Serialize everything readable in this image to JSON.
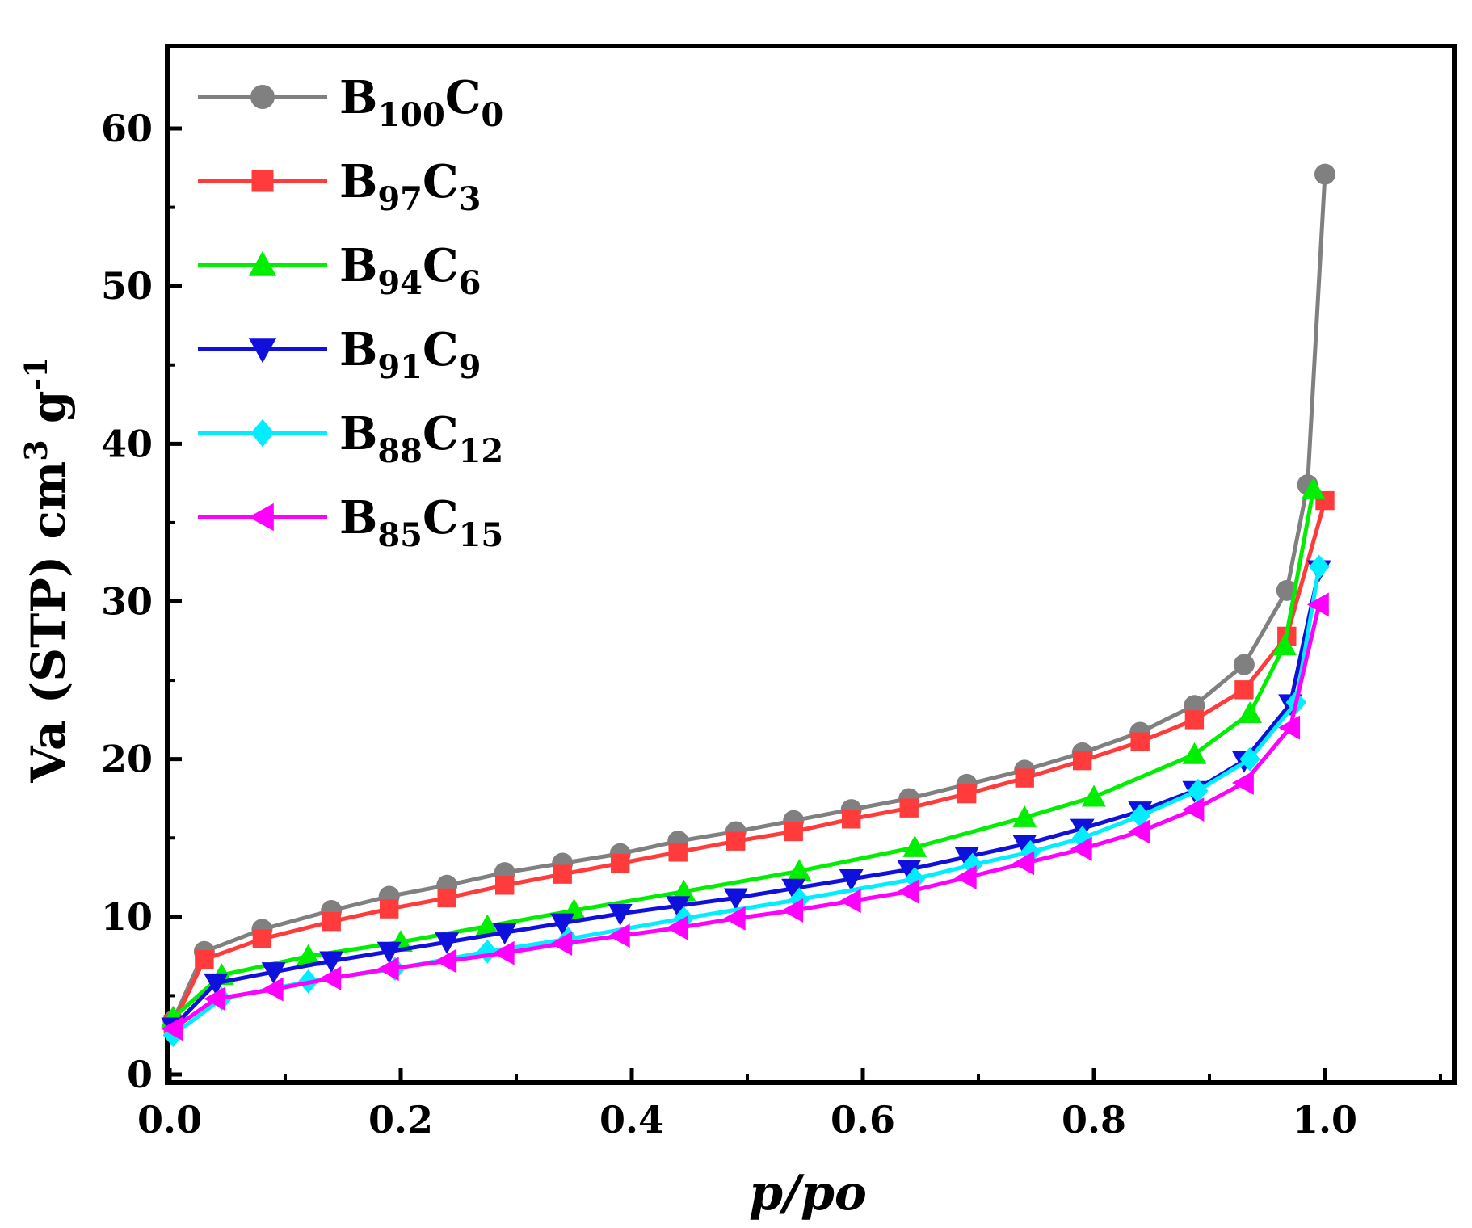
{
  "chart_data": {
    "type": "line",
    "title": "",
    "xlabel": "p/po",
    "ylabel_parts": {
      "main": "Va (STP) cm",
      "unit_sup_1": "3",
      "unit_mid": " g",
      "unit_sup_2": "-1"
    },
    "xlim": [
      0.0,
      1.1
    ],
    "ylim": [
      0,
      65
    ],
    "x_ticks": [
      0.0,
      0.2,
      0.4,
      0.6,
      0.8,
      1.0
    ],
    "x_tick_labels": [
      "0.0",
      "0.2",
      "0.4",
      "0.6",
      "0.8",
      "1.0"
    ],
    "y_ticks": [
      0,
      10,
      20,
      30,
      40,
      50,
      60
    ],
    "y_tick_labels": [
      "0",
      "10",
      "20",
      "30",
      "40",
      "50",
      "60"
    ],
    "grid": false,
    "legend_position": "top-left",
    "series": [
      {
        "name": "B100C0",
        "label_b": "B",
        "label_b_sub": "100",
        "label_c": "C",
        "label_c_sub": "0",
        "color": "#808080",
        "marker": "circle",
        "x": [
          0.003,
          0.03,
          0.08,
          0.14,
          0.19,
          0.24,
          0.29,
          0.34,
          0.39,
          0.44,
          0.49,
          0.54,
          0.59,
          0.64,
          0.69,
          0.74,
          0.79,
          0.84,
          0.887,
          0.93,
          0.967,
          0.985,
          1.0
        ],
        "y": [
          3.4,
          7.8,
          9.2,
          10.4,
          11.3,
          12.0,
          12.8,
          13.4,
          14.0,
          14.8,
          15.4,
          16.1,
          16.8,
          17.5,
          18.4,
          19.3,
          20.4,
          21.7,
          23.4,
          26.0,
          30.7,
          37.4,
          57.1
        ]
      },
      {
        "name": "B97C3",
        "label_b": "B",
        "label_b_sub": "97",
        "label_c": "C",
        "label_c_sub": "3",
        "color": "#ff3b3b",
        "marker": "square",
        "x": [
          0.003,
          0.03,
          0.08,
          0.14,
          0.19,
          0.24,
          0.29,
          0.34,
          0.39,
          0.44,
          0.49,
          0.54,
          0.59,
          0.64,
          0.69,
          0.74,
          0.79,
          0.84,
          0.887,
          0.93,
          0.967,
          1.0
        ],
        "y": [
          3.2,
          7.3,
          8.6,
          9.7,
          10.5,
          11.2,
          12.0,
          12.7,
          13.4,
          14.1,
          14.8,
          15.4,
          16.2,
          16.9,
          17.8,
          18.8,
          19.9,
          21.1,
          22.5,
          24.4,
          27.8,
          36.4
        ]
      },
      {
        "name": "B94C6",
        "label_b": "B",
        "label_b_sub": "94",
        "label_c": "C",
        "label_c_sub": "6",
        "color": "#00ee00",
        "marker": "triangle-up",
        "x": [
          0.003,
          0.045,
          0.12,
          0.2,
          0.275,
          0.35,
          0.445,
          0.545,
          0.645,
          0.74,
          0.8,
          0.887,
          0.935,
          0.965,
          0.99
        ],
        "y": [
          3.6,
          6.3,
          7.5,
          8.4,
          9.4,
          10.4,
          11.6,
          12.9,
          14.4,
          16.3,
          17.6,
          20.3,
          22.9,
          27.2,
          37.1
        ]
      },
      {
        "name": "B91C9",
        "label_b": "B",
        "label_b_sub": "91",
        "label_c": "C",
        "label_c_sub": "9",
        "color": "#1010dd",
        "marker": "triangle-down",
        "x": [
          0.003,
          0.04,
          0.09,
          0.14,
          0.19,
          0.24,
          0.29,
          0.34,
          0.39,
          0.44,
          0.49,
          0.54,
          0.59,
          0.64,
          0.69,
          0.74,
          0.79,
          0.84,
          0.887,
          0.93,
          0.97,
          0.995
        ],
        "y": [
          3.0,
          5.8,
          6.5,
          7.2,
          7.8,
          8.4,
          9.0,
          9.6,
          10.2,
          10.7,
          11.2,
          11.8,
          12.4,
          13.0,
          13.8,
          14.6,
          15.6,
          16.7,
          18.0,
          19.9,
          23.5,
          32.0
        ]
      },
      {
        "name": "B88C12",
        "label_b": "B",
        "label_b_sub": "88",
        "label_c": "C",
        "label_c_sub": "12",
        "color": "#00eeff",
        "marker": "diamond",
        "x": [
          0.003,
          0.045,
          0.12,
          0.195,
          0.275,
          0.345,
          0.445,
          0.545,
          0.645,
          0.695,
          0.745,
          0.79,
          0.84,
          0.89,
          0.935,
          0.975,
          0.995
        ],
        "y": [
          2.5,
          4.8,
          5.9,
          6.7,
          7.8,
          8.6,
          9.9,
          11.1,
          12.4,
          13.3,
          14.1,
          15.0,
          16.4,
          18.0,
          20.0,
          23.6,
          32.2
        ]
      },
      {
        "name": "B85C15",
        "label_b": "B",
        "label_b_sub": "85",
        "label_c": "C",
        "label_c_sub": "15",
        "color": "#ff00ff",
        "marker": "triangle-left",
        "x": [
          0.003,
          0.04,
          0.09,
          0.14,
          0.19,
          0.24,
          0.29,
          0.34,
          0.39,
          0.44,
          0.49,
          0.54,
          0.59,
          0.64,
          0.69,
          0.74,
          0.79,
          0.84,
          0.887,
          0.93,
          0.97,
          0.995
        ],
        "y": [
          2.9,
          4.8,
          5.4,
          6.1,
          6.7,
          7.2,
          7.7,
          8.3,
          8.8,
          9.3,
          9.9,
          10.4,
          11.0,
          11.6,
          12.5,
          13.4,
          14.3,
          15.4,
          16.8,
          18.5,
          22.0,
          29.8
        ]
      }
    ]
  }
}
